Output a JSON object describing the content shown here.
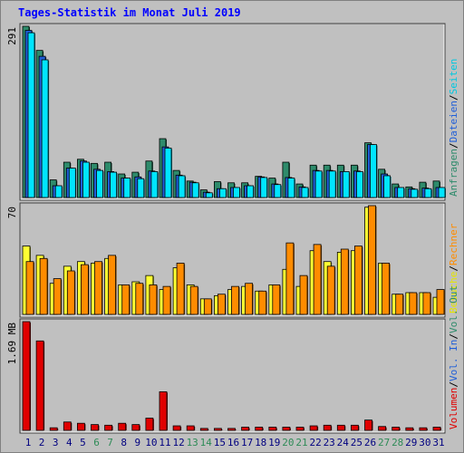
{
  "title": "Tages-Statistik im Monat Juli 2019",
  "colors": {
    "background": "#c0c0c0",
    "anfragen": "#2e8b6b",
    "dateien": "#1f5ed8",
    "seiten": "#00e5ff",
    "besuche": "#ffff33",
    "rechner": "#ff8c00",
    "volumen": "#e00000",
    "weekend_day": "#2e8b57",
    "weekday_day": "#000080"
  },
  "chart_data": [
    {
      "type": "bar",
      "ylabel": "291",
      "ylim": [
        0,
        291
      ],
      "categories": [
        "1",
        "2",
        "3",
        "4",
        "5",
        "6",
        "7",
        "8",
        "9",
        "10",
        "11",
        "12",
        "13",
        "14",
        "15",
        "16",
        "17",
        "18",
        "19",
        "20",
        "21",
        "22",
        "23",
        "24",
        "25",
        "26",
        "27",
        "28",
        "29",
        "30",
        "31"
      ],
      "series": [
        {
          "name": "Anfragen",
          "values": [
            291,
            250,
            30,
            60,
            65,
            58,
            60,
            40,
            43,
            62,
            100,
            46,
            28,
            13,
            27,
            25,
            25,
            36,
            33,
            60,
            23,
            55,
            55,
            55,
            55,
            93,
            48,
            23,
            18,
            26,
            28
          ]
        },
        {
          "name": "Dateien",
          "values": [
            284,
            240,
            20,
            50,
            62,
            48,
            44,
            33,
            35,
            45,
            86,
            38,
            26,
            9,
            15,
            17,
            20,
            35,
            23,
            34,
            18,
            46,
            46,
            44,
            45,
            90,
            40,
            17,
            15,
            16,
            17
          ]
        },
        {
          "name": "Seiten",
          "values": [
            280,
            234,
            20,
            50,
            60,
            46,
            43,
            33,
            32,
            44,
            84,
            37,
            25,
            8,
            15,
            17,
            20,
            34,
            22,
            33,
            17,
            45,
            45,
            44,
            44,
            90,
            37,
            17,
            14,
            15,
            17
          ]
        }
      ],
      "legend": [
        "Anfragen",
        "Dateien",
        "Seiten"
      ]
    },
    {
      "type": "bar",
      "ylabel": "70",
      "ylim": [
        0,
        70
      ],
      "categories": [
        "1",
        "2",
        "3",
        "4",
        "5",
        "6",
        "7",
        "8",
        "9",
        "10",
        "11",
        "12",
        "13",
        "14",
        "15",
        "16",
        "17",
        "18",
        "19",
        "20",
        "21",
        "22",
        "23",
        "24",
        "25",
        "26",
        "27",
        "28",
        "29",
        "30",
        "31"
      ],
      "series": [
        {
          "name": "Besuche",
          "values": [
            44,
            38,
            20,
            31,
            34,
            33,
            36,
            19,
            21,
            25,
            16,
            30,
            19,
            10,
            12,
            16,
            18,
            15,
            19,
            29,
            18,
            41,
            34,
            40,
            41,
            69,
            33,
            13,
            14,
            14,
            11
          ]
        },
        {
          "name": "Rechner",
          "values": [
            34,
            36,
            23,
            28,
            32,
            34,
            38,
            19,
            20,
            19,
            18,
            33,
            18,
            10,
            13,
            18,
            20,
            15,
            19,
            46,
            25,
            45,
            31,
            42,
            44,
            70,
            33,
            13,
            14,
            14,
            16
          ]
        }
      ],
      "legend": [
        "Besuche",
        "Rechner"
      ]
    },
    {
      "type": "bar",
      "ylabel": "1.69 MB",
      "ylim": [
        0,
        1.69
      ],
      "categories": [
        "1",
        "2",
        "3",
        "4",
        "5",
        "6",
        "7",
        "8",
        "9",
        "10",
        "11",
        "12",
        "13",
        "14",
        "15",
        "16",
        "17",
        "18",
        "19",
        "20",
        "21",
        "22",
        "23",
        "24",
        "25",
        "26",
        "27",
        "28",
        "29",
        "30",
        "31"
      ],
      "series": [
        {
          "name": "Volumen",
          "values": [
            1.69,
            1.39,
            0.04,
            0.13,
            0.11,
            0.09,
            0.08,
            0.11,
            0.09,
            0.19,
            0.6,
            0.07,
            0.07,
            0.03,
            0.03,
            0.03,
            0.05,
            0.05,
            0.05,
            0.05,
            0.05,
            0.07,
            0.08,
            0.08,
            0.08,
            0.16,
            0.06,
            0.05,
            0.04,
            0.04,
            0.05
          ]
        }
      ],
      "legend": [
        "Volumen",
        "Vol. In",
        "Vol. Out"
      ]
    }
  ],
  "right_labels": {
    "top": [
      {
        "text": "Anfragen",
        "color": "#2e8b6b"
      },
      {
        "text": "/",
        "color": "#000000"
      },
      {
        "text": "Dateien",
        "color": "#1f5ed8"
      },
      {
        "text": "/",
        "color": "#000000"
      },
      {
        "text": "Seiten",
        "color": "#00c8e0"
      }
    ],
    "middle": [
      {
        "text": "Besuche",
        "color": "#e6e600"
      },
      {
        "text": "/",
        "color": "#000000"
      },
      {
        "text": "Rechner",
        "color": "#ff8c00"
      }
    ],
    "bottom": [
      {
        "text": "Volumen",
        "color": "#e00000"
      },
      {
        "text": "/",
        "color": "#000000"
      },
      {
        "text": "Vol. In",
        "color": "#1f5ed8"
      },
      {
        "text": "/",
        "color": "#000000"
      },
      {
        "text": "Vol. Out",
        "color": "#2e8b6b"
      }
    ]
  },
  "weekend_days": [
    "6",
    "7",
    "13",
    "14",
    "20",
    "21",
    "27",
    "28"
  ]
}
